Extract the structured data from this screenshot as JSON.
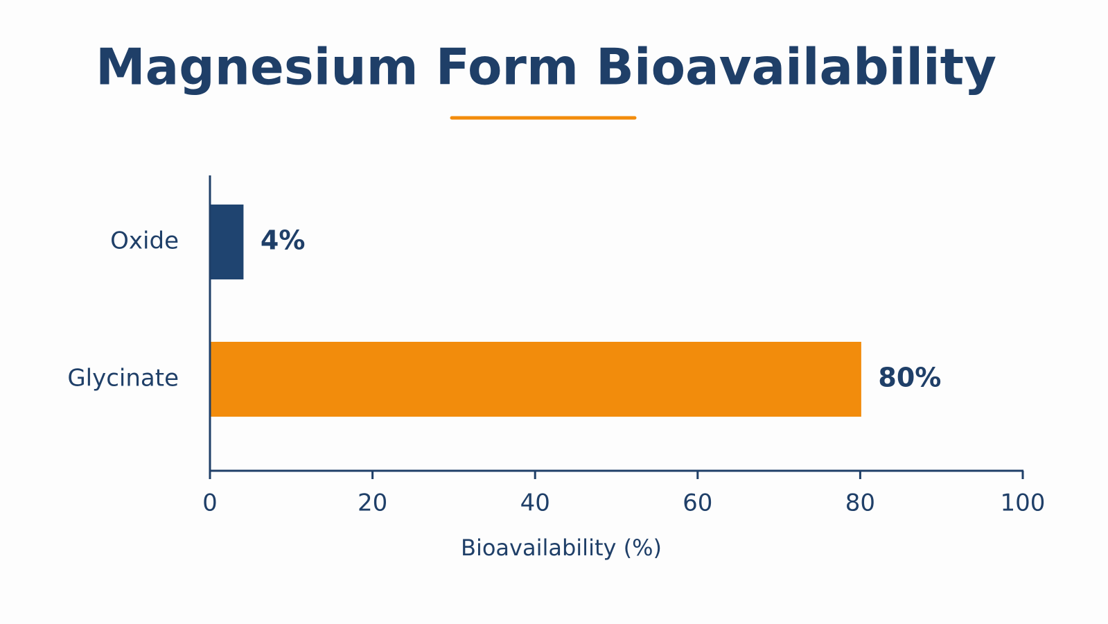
{
  "chart_data": {
    "type": "hbar",
    "title": "Magnesium Form Bioavailability",
    "categories": [
      "Oxide",
      "Glycinate"
    ],
    "values": [
      4,
      80
    ],
    "value_labels": [
      "4%",
      "80%"
    ],
    "colors": [
      "#1f4470",
      "#f28c0c"
    ],
    "xlim": [
      0,
      100
    ],
    "xticks": [
      0,
      20,
      40,
      60,
      80,
      100
    ],
    "x_label": "Bioavailability (%)"
  }
}
